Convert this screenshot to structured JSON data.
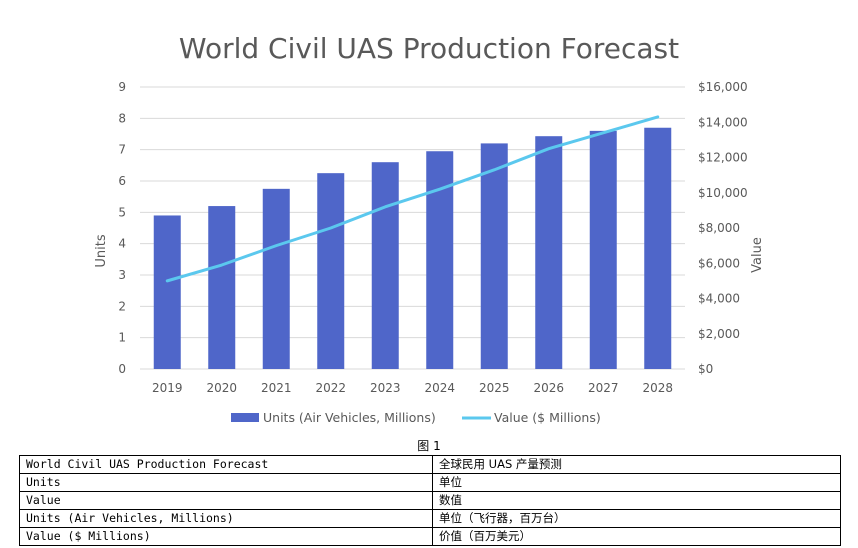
{
  "chart_data": {
    "type": "bar+line",
    "title": "World Civil UAS Production Forecast",
    "categories": [
      "2019",
      "2020",
      "2021",
      "2022",
      "2023",
      "2024",
      "2025",
      "2026",
      "2027",
      "2028"
    ],
    "series": [
      {
        "name": "Units (Air Vehicles, Millions)",
        "type": "bar",
        "axis": "left",
        "color": "#4f66c9",
        "values": [
          4.9,
          5.2,
          5.75,
          6.25,
          6.6,
          6.95,
          7.2,
          7.43,
          7.6,
          7.7
        ]
      },
      {
        "name": "Value ($ Millions)",
        "type": "line",
        "axis": "right",
        "color": "#5bc8ee",
        "values": [
          5000,
          5900,
          7000,
          8000,
          9200,
          10200,
          11300,
          12500,
          13400,
          14300
        ]
      }
    ],
    "ylabel_left": "Units",
    "ylabel_right": "Value",
    "ylim_left": [
      0,
      9
    ],
    "ylim_right": [
      0,
      16000
    ],
    "yticks_left": [
      "0",
      "1",
      "2",
      "3",
      "4",
      "5",
      "6",
      "7",
      "8",
      "9"
    ],
    "yticks_right": [
      "$0",
      "$2,000",
      "$4,000",
      "$6,000",
      "$8,000",
      "$10,000",
      "$12,000",
      "$14,000",
      "$16,000"
    ],
    "grid": true,
    "legend_position": "bottom"
  },
  "caption": "图 1",
  "translation_table": [
    {
      "en": "World Civil UAS Production Forecast",
      "zh": "全球民用 UAS 产量预测"
    },
    {
      "en": "Units",
      "zh": "单位"
    },
    {
      "en": "Value",
      "zh": "数值"
    },
    {
      "en": "Units (Air Vehicles, Millions)",
      "zh": "单位（飞行器，百万台）"
    },
    {
      "en": "Value ($ Millions)",
      "zh": "价值（百万美元）"
    }
  ]
}
